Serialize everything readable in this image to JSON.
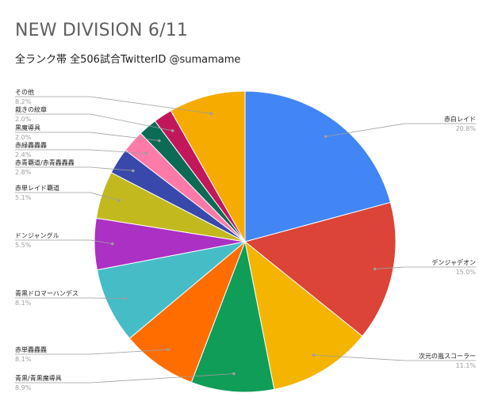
{
  "chart_data": {
    "type": "pie",
    "title": "NEW DIVISION 6/11",
    "subtitle": "全ランク帯 全506試合TwitterID @sumamame",
    "slices": [
      {
        "label": "赤白レイド",
        "value": 20.8,
        "percent_label": "20.8%",
        "color": "#4285f4"
      },
      {
        "label": "デンジャデオン",
        "value": 15.0,
        "percent_label": "15.0%",
        "color": "#db4437"
      },
      {
        "label": "次元の嵐スコーラー",
        "value": 11.1,
        "percent_label": "11.1%",
        "color": "#f4b400"
      },
      {
        "label": "青黒/青黒魔導具",
        "value": 8.9,
        "percent_label": "8.9%",
        "color": "#0f9d58"
      },
      {
        "label": "赤単轟轟轟",
        "value": 8.1,
        "percent_label": "8.1%",
        "color": "#ff6d00"
      },
      {
        "label": "青黒ドロマーハンデス",
        "value": 8.1,
        "percent_label": "8.1%",
        "color": "#46bdc6"
      },
      {
        "label": "ドンジャングル",
        "value": 5.5,
        "percent_label": "5.5%",
        "color": "#ab30c4"
      },
      {
        "label": "赤単レイド覇道",
        "value": 5.1,
        "percent_label": "5.1%",
        "color": "#c2b91f"
      },
      {
        "label": "赤青覇道/赤青轟轟轟",
        "value": 2.8,
        "percent_label": "2.8%",
        "color": "#3949ab"
      },
      {
        "label": "赤緑轟轟轟",
        "value": 2.4,
        "percent_label": "2.4%",
        "color": "#ff7aa8"
      },
      {
        "label": "黒魔導具",
        "value": 2.0,
        "percent_label": "2.0%",
        "color": "#0b6b55"
      },
      {
        "label": "裁きの紋章",
        "value": 2.0,
        "percent_label": "2.0%",
        "color": "#c2185b"
      },
      {
        "label": "その他",
        "value": 8.2,
        "percent_label": "8.2%",
        "color": "#f6ab00"
      }
    ]
  }
}
